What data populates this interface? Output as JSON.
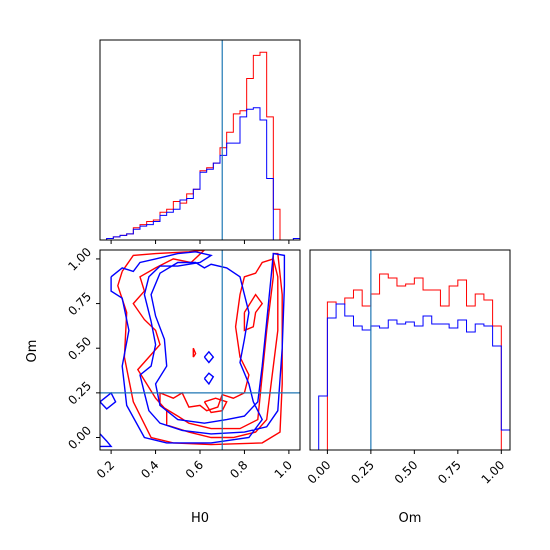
{
  "chart_data": {
    "type": "corner",
    "parameters": [
      "H0",
      "Om"
    ],
    "truths": {
      "H0": 0.7,
      "Om": 0.25
    },
    "colors": {
      "red_series": "#ff0000",
      "blue_series": "#0000ff",
      "truth_line": "#1f77b4"
    },
    "panels": [
      {
        "id": "H0-marginal",
        "type": "histogram",
        "x_range": [
          0.15,
          1.05
        ],
        "bin_edges": [
          0.15,
          0.18,
          0.21,
          0.24,
          0.27,
          0.3,
          0.33,
          0.36,
          0.39,
          0.42,
          0.45,
          0.48,
          0.51,
          0.54,
          0.57,
          0.6,
          0.63,
          0.66,
          0.69,
          0.72,
          0.75,
          0.78,
          0.81,
          0.84,
          0.87,
          0.9,
          0.93,
          0.96,
          0.99,
          1.02,
          1.05
        ],
        "series": [
          {
            "color": "red",
            "values": [
              0.0,
              0.01,
              0.02,
              0.03,
              0.04,
              0.08,
              0.1,
              0.12,
              0.13,
              0.18,
              0.2,
              0.25,
              0.24,
              0.3,
              0.33,
              0.45,
              0.47,
              0.5,
              0.6,
              0.7,
              0.82,
              0.84,
              1.05,
              1.2,
              1.22,
              0.8,
              0.2,
              0.0,
              0.0,
              0.0
            ]
          },
          {
            "color": "blue",
            "values": [
              0.0,
              0.01,
              0.02,
              0.03,
              0.04,
              0.07,
              0.09,
              0.1,
              0.12,
              0.16,
              0.18,
              0.2,
              0.26,
              0.27,
              0.33,
              0.44,
              0.46,
              0.5,
              0.55,
              0.63,
              0.63,
              0.8,
              0.85,
              0.86,
              0.78,
              0.4,
              0.0,
              0.0,
              0.0,
              0.01
            ]
          }
        ]
      },
      {
        "id": "Om-marginal",
        "type": "histogram",
        "x_range": [
          -0.1,
          1.05
        ],
        "xticks": [
          "0.00",
          "0.25",
          "0.50",
          "0.75",
          "1.00"
        ],
        "bin_edges": [
          -0.1,
          -0.05,
          0.0,
          0.05,
          0.1,
          0.15,
          0.2,
          0.25,
          0.3,
          0.35,
          0.4,
          0.45,
          0.5,
          0.55,
          0.6,
          0.65,
          0.7,
          0.75,
          0.8,
          0.85,
          0.9,
          0.95,
          1.0,
          1.05
        ],
        "series": [
          {
            "color": "red",
            "values": [
              0.0,
              0.0,
              0.74,
              0.73,
              0.76,
              0.8,
              0.72,
              0.78,
              0.88,
              0.86,
              0.82,
              0.83,
              0.86,
              0.8,
              0.8,
              0.72,
              0.82,
              0.85,
              0.72,
              0.78,
              0.75,
              0.62,
              0.0
            ]
          },
          {
            "color": "blue",
            "values": [
              0.0,
              0.27,
              0.66,
              0.73,
              0.67,
              0.62,
              0.6,
              0.62,
              0.61,
              0.65,
              0.63,
              0.64,
              0.62,
              0.67,
              0.63,
              0.63,
              0.61,
              0.65,
              0.59,
              0.63,
              0.62,
              0.52,
              0.1
            ]
          }
        ]
      },
      {
        "id": "H0-Om-2d",
        "type": "contour",
        "xlabel": "H0",
        "ylabel": "Om",
        "xticks": [
          "0.2",
          "0.4",
          "0.6",
          "0.8",
          "1.0"
        ],
        "yticks": [
          "0.00",
          "0.25",
          "0.50",
          "0.75",
          "1.00"
        ],
        "x_range": [
          0.15,
          1.05
        ],
        "y_range": [
          -0.07,
          1.05
        ],
        "contours": [
          {
            "color": "red",
            "paths": [
              [
                [
                  0.25,
                  0.93
                ],
                [
                  0.3,
                  1.02
                ],
                [
                  0.4,
                  1.03
                ],
                [
                  0.55,
                  1.04
                ],
                [
                  0.62,
                  1.05
                ],
                [
                  0.56,
                  0.98
                ],
                [
                  0.48,
                  1.0
                ],
                [
                  0.4,
                  0.95
                ],
                [
                  0.33,
                  0.9
                ],
                [
                  0.35,
                  0.82
                ],
                [
                  0.3,
                  0.75
                ],
                [
                  0.35,
                  0.66
                ],
                [
                  0.4,
                  0.6
                ],
                [
                  0.42,
                  0.52
                ],
                [
                  0.37,
                  0.45
                ],
                [
                  0.32,
                  0.38
                ],
                [
                  0.36,
                  0.3
                ],
                [
                  0.4,
                  0.22
                ],
                [
                  0.45,
                  0.15
                ],
                [
                  0.45,
                  0.07
                ],
                [
                  0.55,
                  0.03
                ],
                [
                  0.65,
                  0.0
                ],
                [
                  0.75,
                  0.0
                ],
                [
                  0.85,
                  0.03
                ],
                [
                  0.9,
                  0.1
                ],
                [
                  0.92,
                  0.3
                ],
                [
                  0.95,
                  0.6
                ],
                [
                  0.95,
                  0.9
                ],
                [
                  0.93,
                  1.0
                ],
                [
                  0.88,
                  0.98
                ],
                [
                  0.85,
                  0.92
                ],
                [
                  0.8,
                  0.9
                ],
                [
                  0.78,
                  0.8
                ],
                [
                  0.76,
                  0.62
                ],
                [
                  0.78,
                  0.45
                ],
                [
                  0.82,
                  0.35
                ],
                [
                  0.8,
                  0.25
                ],
                [
                  0.75,
                  0.22
                ],
                [
                  0.7,
                  0.24
                ],
                [
                  0.68,
                  0.17
                ],
                [
                  0.63,
                  0.15
                ],
                [
                  0.6,
                  0.18
                ],
                [
                  0.55,
                  0.17
                ],
                [
                  0.52,
                  0.25
                ],
                [
                  0.48,
                  0.22
                ],
                [
                  0.42,
                  0.25
                ],
                [
                  0.42,
                  0.18
                ],
                [
                  0.5,
                  0.12
                ],
                [
                  0.55,
                  0.08
                ],
                [
                  0.65,
                  0.05
                ],
                [
                  0.78,
                  0.05
                ],
                [
                  0.86,
                  0.1
                ],
                [
                  0.88,
                  0.35
                ],
                [
                  0.9,
                  0.6
                ],
                [
                  0.93,
                  0.9
                ],
                [
                  0.93,
                  1.03
                ],
                [
                  0.95,
                  1.03
                ],
                [
                  0.97,
                  0.8
                ],
                [
                  0.97,
                  0.3
                ],
                [
                  0.96,
                  0.03
                ],
                [
                  0.88,
                  -0.03
                ],
                [
                  0.65,
                  -0.04
                ],
                [
                  0.48,
                  -0.03
                ],
                [
                  0.38,
                  0.0
                ],
                [
                  0.3,
                  0.2
                ],
                [
                  0.26,
                  0.45
                ],
                [
                  0.27,
                  0.7
                ],
                [
                  0.23,
                  0.85
                ],
                [
                  0.25,
                  0.93
                ]
              ],
              [
                [
                  0.8,
                  0.7
                ],
                [
                  0.85,
                  0.8
                ],
                [
                  0.88,
                  0.75
                ],
                [
                  0.85,
                  0.7
                ],
                [
                  0.84,
                  0.62
                ],
                [
                  0.8,
                  0.6
                ],
                [
                  0.8,
                  0.7
                ]
              ],
              [
                [
                  0.62,
                  0.2
                ],
                [
                  0.65,
                  0.14
                ],
                [
                  0.7,
                  0.15
                ],
                [
                  0.72,
                  0.2
                ],
                [
                  0.67,
                  0.22
                ],
                [
                  0.62,
                  0.2
                ]
              ],
              [
                [
                  0.57,
                  0.45
                ],
                [
                  0.57,
                  0.5
                ],
                [
                  0.58,
                  0.47
                ],
                [
                  0.57,
                  0.45
                ]
              ]
            ]
          },
          {
            "color": "blue",
            "paths": [
              [
                [
                  0.2,
                  0.9
                ],
                [
                  0.25,
                  0.95
                ],
                [
                  0.3,
                  0.93
                ],
                [
                  0.33,
                  0.98
                ],
                [
                  0.4,
                  1.0
                ],
                [
                  0.5,
                  1.03
                ],
                [
                  0.58,
                  1.04
                ],
                [
                  0.65,
                  1.02
                ],
                [
                  0.6,
                  0.98
                ],
                [
                  0.5,
                  0.96
                ],
                [
                  0.42,
                  0.96
                ],
                [
                  0.37,
                  0.9
                ],
                [
                  0.35,
                  0.8
                ],
                [
                  0.38,
                  0.65
                ],
                [
                  0.4,
                  0.52
                ],
                [
                  0.38,
                  0.4
                ],
                [
                  0.33,
                  0.35
                ],
                [
                  0.35,
                  0.25
                ],
                [
                  0.37,
                  0.15
                ],
                [
                  0.42,
                  0.08
                ],
                [
                  0.52,
                  0.04
                ],
                [
                  0.65,
                  0.02
                ],
                [
                  0.8,
                  0.03
                ],
                [
                  0.9,
                  0.06
                ],
                [
                  0.95,
                  0.15
                ],
                [
                  0.97,
                  0.5
                ],
                [
                  0.98,
                  0.85
                ],
                [
                  0.98,
                  1.02
                ],
                [
                  0.93,
                  1.03
                ],
                [
                  0.92,
                  0.9
                ],
                [
                  0.9,
                  0.65
                ],
                [
                  0.88,
                  0.4
                ],
                [
                  0.86,
                  0.2
                ],
                [
                  0.8,
                  0.12
                ],
                [
                  0.72,
                  0.1
                ],
                [
                  0.62,
                  0.08
                ],
                [
                  0.5,
                  0.1
                ],
                [
                  0.42,
                  0.18
                ],
                [
                  0.4,
                  0.3
                ],
                [
                  0.45,
                  0.4
                ],
                [
                  0.44,
                  0.55
                ],
                [
                  0.4,
                  0.68
                ],
                [
                  0.38,
                  0.8
                ],
                [
                  0.42,
                  0.92
                ],
                [
                  0.5,
                  0.98
                ],
                [
                  0.58,
                  0.98
                ],
                [
                  0.62,
                  0.95
                ],
                [
                  0.65,
                  0.97
                ],
                [
                  0.72,
                  0.95
                ],
                [
                  0.78,
                  0.9
                ],
                [
                  0.8,
                  0.8
                ],
                [
                  0.82,
                  0.7
                ],
                [
                  0.8,
                  0.55
                ],
                [
                  0.78,
                  0.42
                ],
                [
                  0.82,
                  0.3
                ],
                [
                  0.84,
                  0.2
                ],
                [
                  0.88,
                  0.1
                ],
                [
                  0.82,
                  0.0
                ],
                [
                  0.65,
                  -0.03
                ],
                [
                  0.45,
                  -0.03
                ],
                [
                  0.35,
                  0.0
                ],
                [
                  0.27,
                  0.18
                ],
                [
                  0.25,
                  0.4
                ],
                [
                  0.28,
                  0.6
                ],
                [
                  0.25,
                  0.78
                ],
                [
                  0.2,
                  0.82
                ],
                [
                  0.2,
                  0.9
                ]
              ],
              [
                [
                  0.15,
                  0.2
                ],
                [
                  0.2,
                  0.25
                ],
                [
                  0.22,
                  0.2
                ],
                [
                  0.18,
                  0.16
                ],
                [
                  0.15,
                  0.2
                ]
              ],
              [
                [
                  0.15,
                  0.02
                ],
                [
                  0.18,
                  -0.02
                ],
                [
                  0.2,
                  -0.05
                ],
                [
                  0.15,
                  -0.05
                ]
              ],
              [
                [
                  0.62,
                  0.45
                ],
                [
                  0.64,
                  0.42
                ],
                [
                  0.66,
                  0.45
                ],
                [
                  0.64,
                  0.48
                ],
                [
                  0.62,
                  0.45
                ]
              ],
              [
                [
                  0.62,
                  0.33
                ],
                [
                  0.64,
                  0.3
                ],
                [
                  0.66,
                  0.34
                ],
                [
                  0.64,
                  0.36
                ],
                [
                  0.62,
                  0.33
                ]
              ]
            ]
          }
        ]
      }
    ]
  }
}
